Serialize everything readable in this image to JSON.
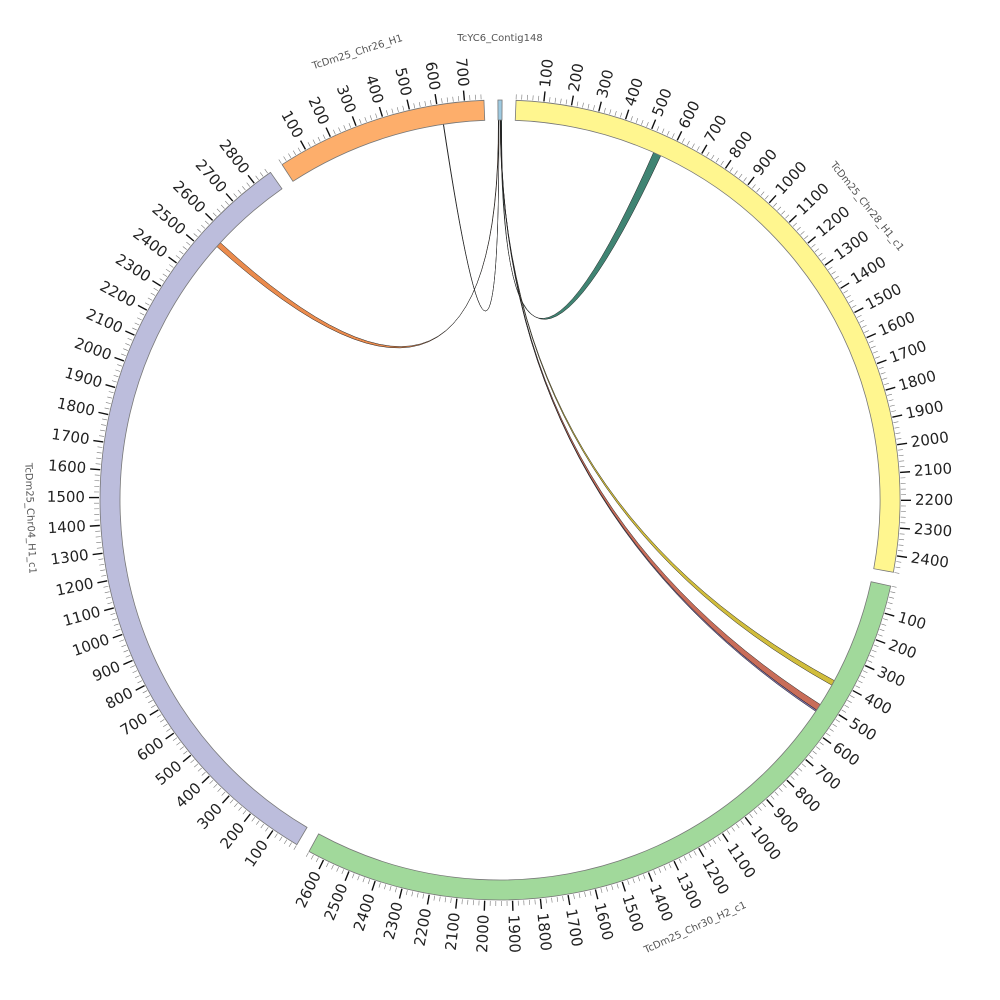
{
  "chart_data": {
    "type": "chord",
    "minor_tick_interval": 20,
    "segments": [
      {
        "name": "TcYC6_Contig148",
        "length": 15,
        "color": "#9ecae1",
        "ticks": []
      },
      {
        "name": "TcDm25_Chr28_H1_c1",
        "length": 2460,
        "color": "#fff68f",
        "ticks": [
          100,
          200,
          300,
          400,
          500,
          600,
          700,
          800,
          900,
          1000,
          1100,
          1200,
          1300,
          1400,
          1500,
          1600,
          1700,
          1800,
          1900,
          2000,
          2100,
          2200,
          2300,
          2400
        ]
      },
      {
        "name": "TcDm25_Chr30_H2_c1",
        "length": 2660,
        "color": "#a1d99b",
        "ticks": [
          100,
          200,
          300,
          400,
          500,
          600,
          700,
          800,
          900,
          1000,
          1100,
          1200,
          1300,
          1400,
          1500,
          1600,
          1700,
          1800,
          1900,
          2000,
          2100,
          2200,
          2300,
          2400,
          2500,
          2600
        ]
      },
      {
        "name": "TcDm25_Chr04_H1_c1",
        "length": 2870,
        "color": "#bcbddc",
        "ticks": [
          100,
          200,
          300,
          400,
          500,
          600,
          700,
          800,
          900,
          1000,
          1100,
          1200,
          1300,
          1400,
          1500,
          1600,
          1700,
          1800,
          1900,
          2000,
          2100,
          2200,
          2300,
          2400,
          2500,
          2600,
          2700,
          2800
        ]
      },
      {
        "name": "TcDm25_Chr26_H1",
        "length": 770,
        "color": "#fdae6b",
        "ticks": [
          100,
          200,
          300,
          400,
          500,
          600,
          700
        ]
      }
    ],
    "links": [
      {
        "source": {
          "segment": 0,
          "start": 1,
          "end": 3
        },
        "target": {
          "segment": 3,
          "start": 2540,
          "end": 2560
        },
        "color": "#e8772e"
      },
      {
        "source": {
          "segment": 0,
          "start": 3,
          "end": 3.5
        },
        "target": {
          "segment": 4,
          "start": 612,
          "end": 614
        },
        "color": "#000000"
      },
      {
        "source": {
          "segment": 0,
          "start": 11,
          "end": 14
        },
        "target": {
          "segment": 1,
          "start": 540,
          "end": 570
        },
        "color": "#1f6e5a"
      },
      {
        "source": {
          "segment": 0,
          "start": 8,
          "end": 9
        },
        "target": {
          "segment": 2,
          "start": 400,
          "end": 420
        },
        "color": "#c9b21a"
      },
      {
        "source": {
          "segment": 0,
          "start": 9,
          "end": 10.5
        },
        "target": {
          "segment": 2,
          "start": 505,
          "end": 530
        },
        "color": "#c0543c"
      },
      {
        "source": {
          "segment": 0,
          "start": 10.5,
          "end": 11
        },
        "target": {
          "segment": 2,
          "start": 530,
          "end": 536
        },
        "color": "#6a5a9a"
      }
    ]
  }
}
